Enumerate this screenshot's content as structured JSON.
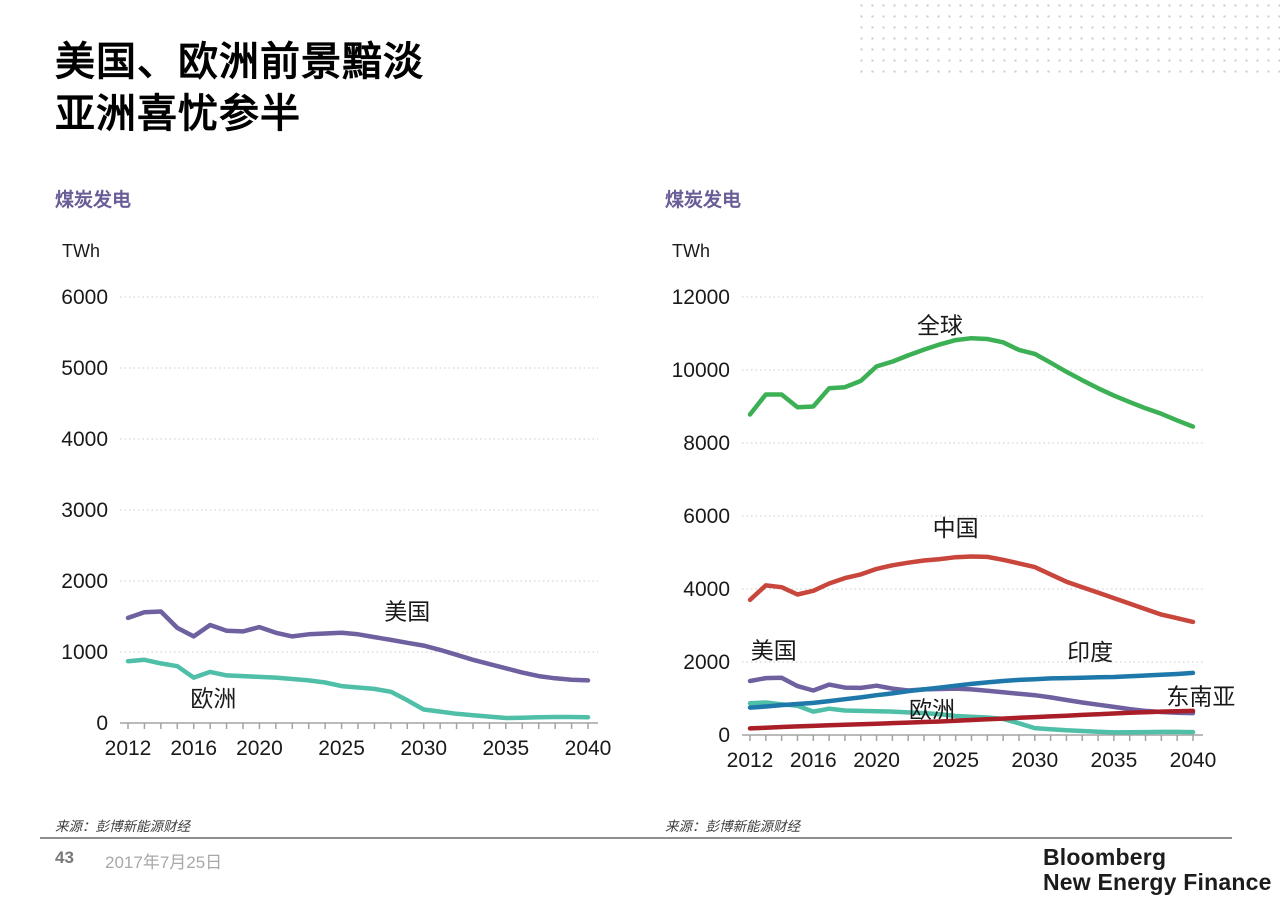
{
  "slide": {
    "title_line1": "美国、欧洲前景黯淡",
    "title_line2": "亚洲喜忧参半",
    "accent_color": "#6a5c96",
    "footer": {
      "page_number": "43",
      "date": "2017年7月25日",
      "logo_line1": "Bloomberg",
      "logo_line2": "New Energy Finance"
    }
  },
  "chart_data": [
    {
      "type": "line",
      "title": "煤炭发电",
      "unit": "TWh",
      "source": "来源：彭博新能源财经",
      "legend_position": "inline-labels",
      "grid": "dotted-horizontal",
      "y_axis": {
        "min": 0,
        "max": 6000,
        "step": 1000,
        "tick_labels": [
          "0",
          "1000",
          "2000",
          "3000",
          "4000",
          "5000",
          "6000"
        ]
      },
      "x_axis": {
        "start_year": 2012,
        "end_year": 2040,
        "labeled_years": [
          2012,
          2016,
          2020,
          2025,
          2030,
          2035,
          2040
        ]
      },
      "series": [
        {
          "name": "美国",
          "color": "#6f61a0",
          "values": [
            1480,
            1560,
            1570,
            1340,
            1220,
            1380,
            1300,
            1290,
            1350,
            1270,
            1220,
            1250,
            1260,
            1270,
            1250,
            1210,
            1170,
            1130,
            1090,
            1030,
            960,
            890,
            830,
            770,
            710,
            660,
            630,
            610,
            600
          ]
        },
        {
          "name": "欧洲",
          "color": "#4fbfa8",
          "values": [
            870,
            890,
            840,
            800,
            640,
            720,
            670,
            660,
            650,
            640,
            620,
            600,
            570,
            520,
            500,
            480,
            440,
            320,
            190,
            160,
            130,
            110,
            90,
            70,
            75,
            80,
            85,
            85,
            80
          ]
        }
      ],
      "labels": [
        {
          "text": "美国",
          "year": 2029,
          "value": 1460
        },
        {
          "text": "欧洲",
          "year": 2017.2,
          "value": 230
        }
      ]
    },
    {
      "type": "line",
      "title": "煤炭发电",
      "unit": "TWh",
      "source": "来源：彭博新能源财经",
      "legend_position": "inline-labels",
      "grid": "dotted-horizontal",
      "y_axis": {
        "min": 0,
        "max": 12000,
        "step": 2000,
        "tick_labels": [
          "0",
          "2000",
          "4000",
          "6000",
          "8000",
          "10000",
          "12000"
        ]
      },
      "x_axis": {
        "start_year": 2012,
        "end_year": 2040,
        "labeled_years": [
          2012,
          2016,
          2020,
          2025,
          2030,
          2035,
          2040
        ]
      },
      "series": [
        {
          "name": "美国",
          "color": "#6f61a0",
          "values": [
            1480,
            1560,
            1570,
            1340,
            1220,
            1380,
            1300,
            1290,
            1350,
            1270,
            1220,
            1250,
            1260,
            1270,
            1250,
            1210,
            1170,
            1130,
            1090,
            1030,
            960,
            890,
            830,
            770,
            710,
            660,
            630,
            610,
            600
          ]
        },
        {
          "name": "欧洲",
          "color": "#4fbfa8",
          "values": [
            870,
            890,
            840,
            800,
            640,
            720,
            670,
            660,
            650,
            640,
            620,
            600,
            570,
            520,
            500,
            480,
            440,
            320,
            190,
            160,
            130,
            110,
            90,
            70,
            75,
            80,
            85,
            85,
            80
          ]
        },
        {
          "name": "印度",
          "color": "#1e78aa",
          "values": [
            750,
            780,
            820,
            850,
            880,
            930,
            980,
            1030,
            1090,
            1140,
            1200,
            1250,
            1300,
            1350,
            1400,
            1440,
            1480,
            1510,
            1530,
            1550,
            1560,
            1570,
            1580,
            1590,
            1610,
            1630,
            1650,
            1670,
            1700
          ]
        },
        {
          "name": "东南亚",
          "color": "#aa1e28",
          "values": [
            180,
            200,
            220,
            235,
            250,
            265,
            280,
            295,
            310,
            325,
            340,
            355,
            370,
            390,
            410,
            430,
            450,
            470,
            490,
            510,
            530,
            550,
            570,
            590,
            610,
            625,
            640,
            650,
            660
          ]
        },
        {
          "name": "中国",
          "color": "#c8463c",
          "values": [
            3700,
            4100,
            4050,
            3850,
            3950,
            4150,
            4300,
            4400,
            4550,
            4650,
            4720,
            4780,
            4820,
            4870,
            4890,
            4880,
            4800,
            4700,
            4600,
            4400,
            4200,
            4050,
            3900,
            3750,
            3600,
            3450,
            3300,
            3200,
            3100
          ]
        },
        {
          "name": "全球",
          "color": "#3cb054",
          "values": [
            8780,
            9330,
            9330,
            8980,
            9000,
            9500,
            9530,
            9700,
            10100,
            10230,
            10400,
            10560,
            10700,
            10820,
            10870,
            10850,
            10760,
            10550,
            10440,
            10200,
            9950,
            9720,
            9500,
            9300,
            9120,
            8950,
            8800,
            8620,
            8450
          ]
        }
      ],
      "labels": [
        {
          "text": "全球",
          "year": 2024,
          "value": 11000
        },
        {
          "text": "中国",
          "year": 2025,
          "value": 5450
        },
        {
          "text": "美国",
          "year": 2013.5,
          "value": 2100
        },
        {
          "text": "印度",
          "year": 2033.5,
          "value": 2050
        },
        {
          "text": "欧洲",
          "year": 2023.5,
          "value": 480
        },
        {
          "text": "东南亚",
          "year": 2040.5,
          "value": 830
        }
      ]
    }
  ]
}
